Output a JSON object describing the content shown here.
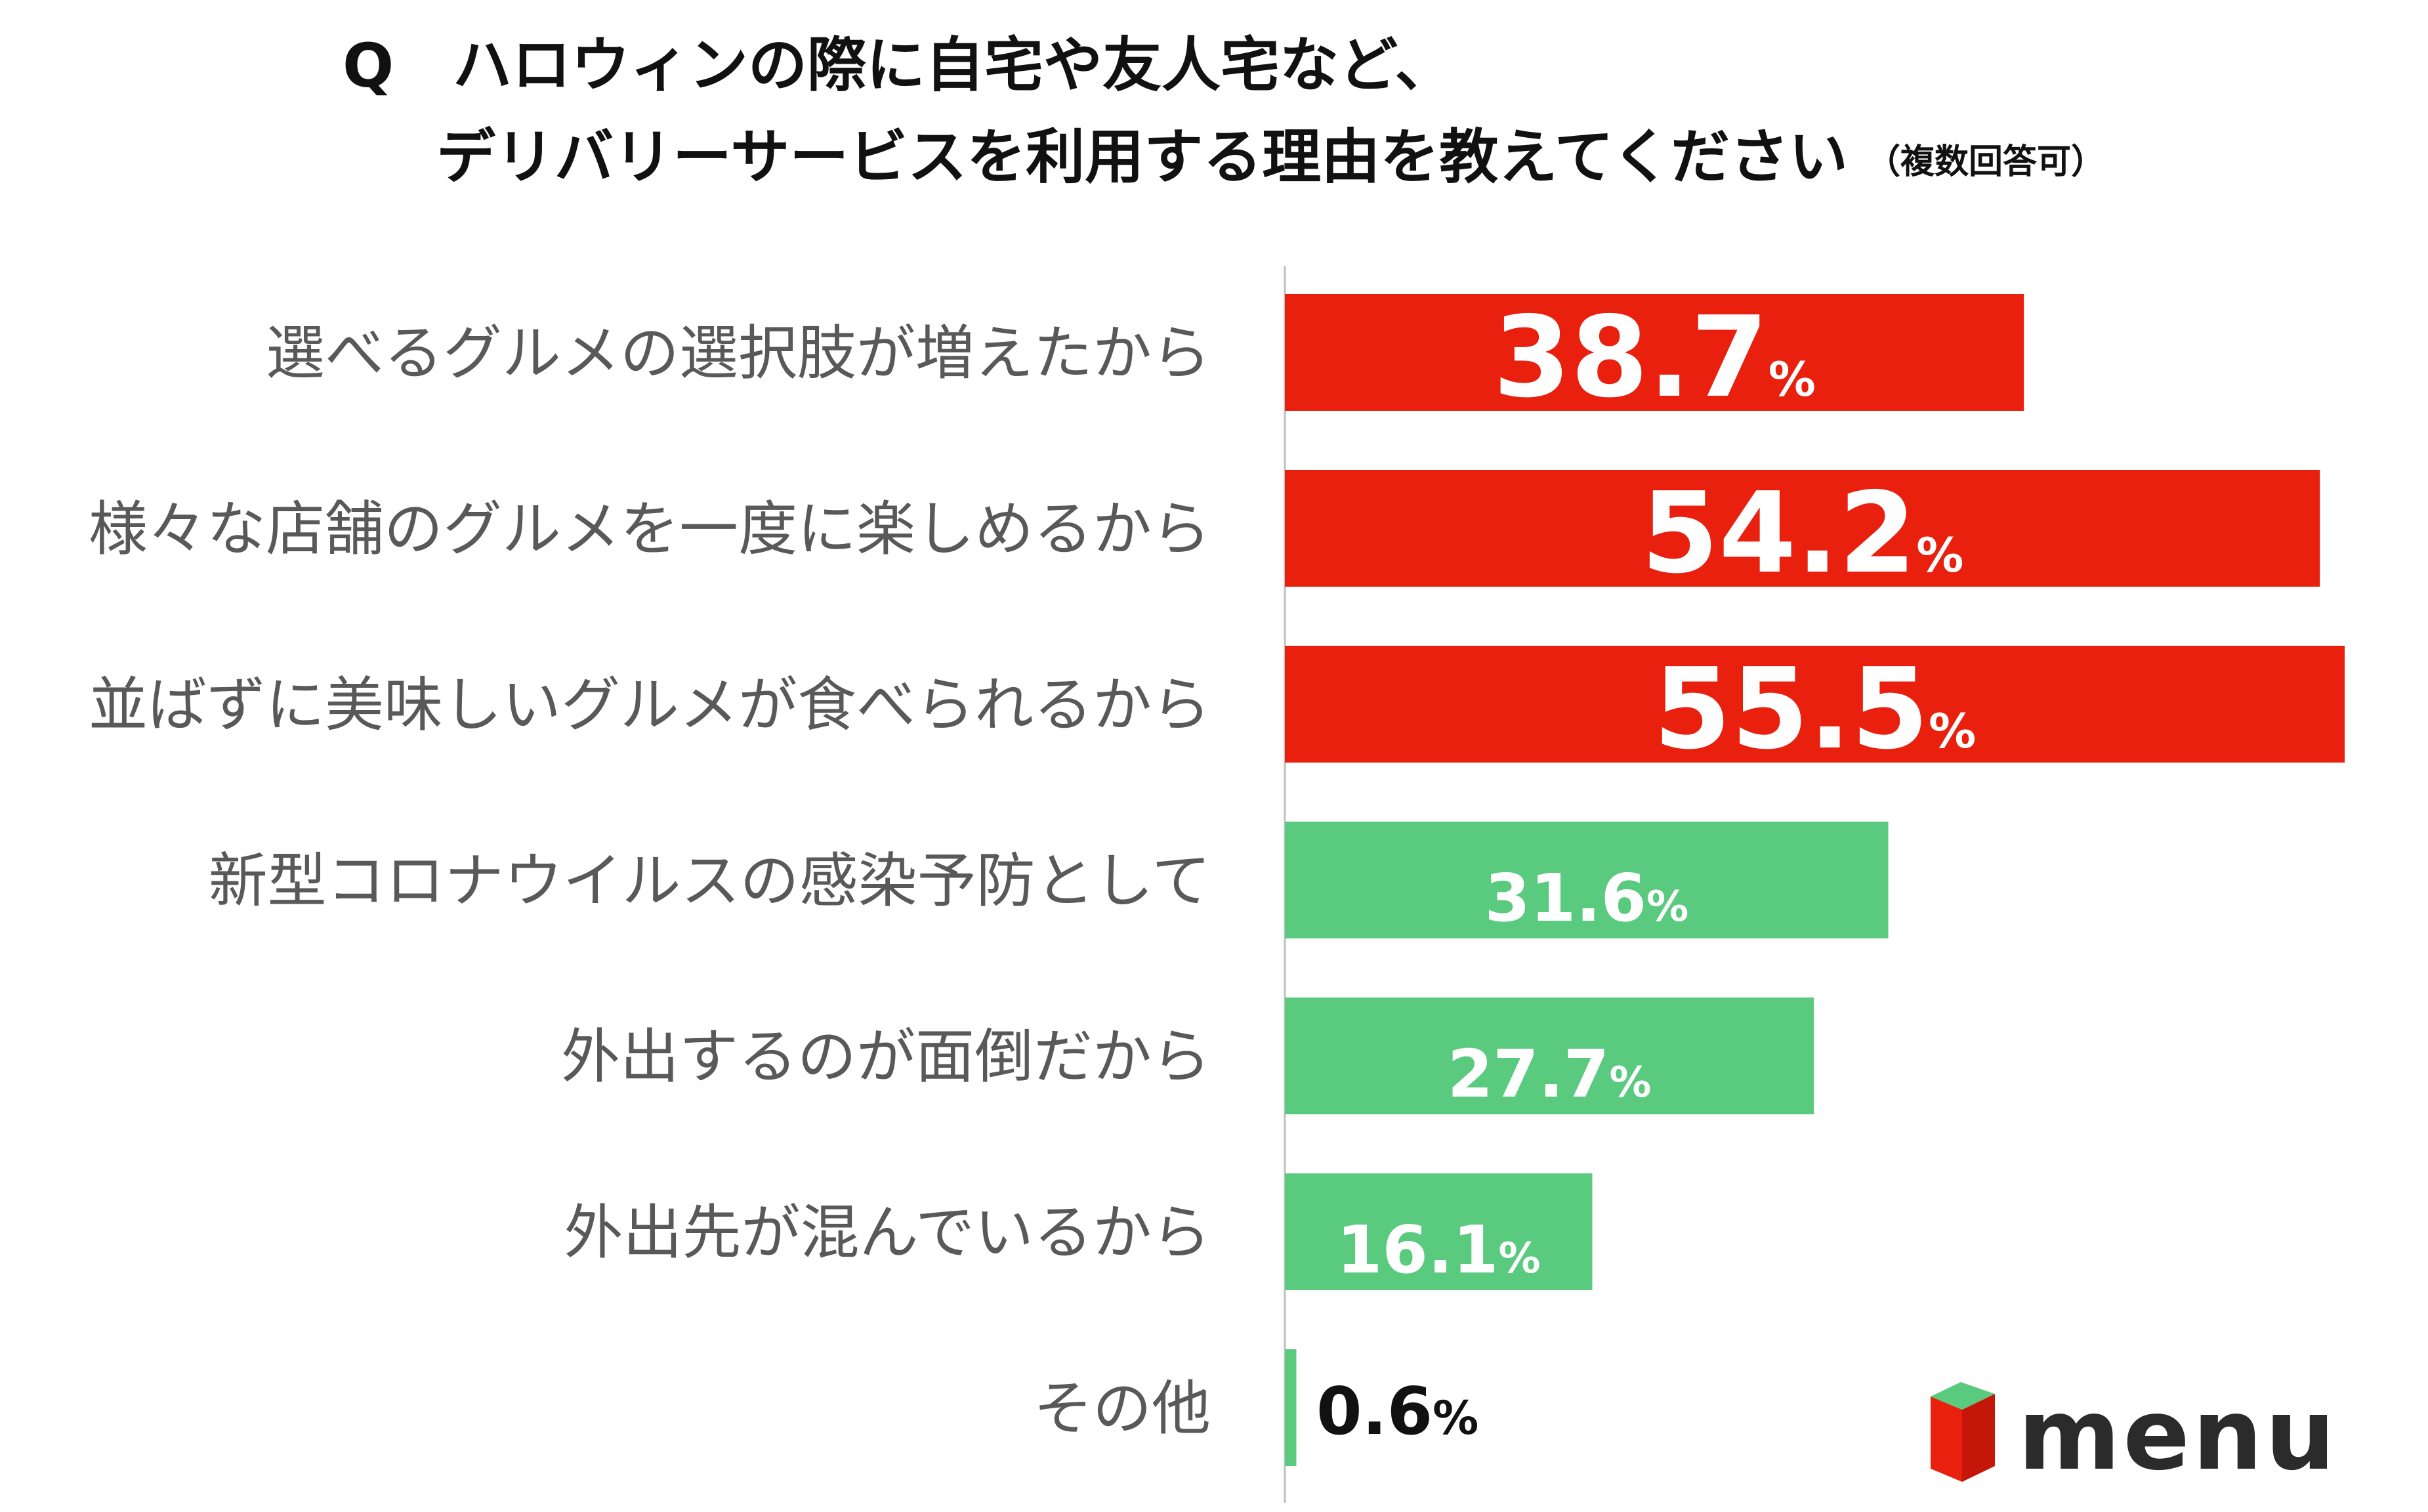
{
  "title": {
    "q_mark": "Q",
    "line1": "ハロウィンの際に自宅や友人宅など、",
    "line2": "デリバリーサービスを利用する理由を教えてください",
    "note": "（複数回答可）"
  },
  "colors": {
    "red": "#e8200d",
    "green": "#5acb7e",
    "label": "#595959",
    "axis": "#bfbfbf",
    "value_on_bar": "#ffffff",
    "value_outside": "#111111"
  },
  "chart_data": {
    "type": "bar",
    "orientation": "horizontal",
    "unit": "%",
    "xlim": [
      0,
      55.5
    ],
    "categories": [
      "選べるグルメの選択肢が増えたから",
      "様々な店舗のグルメを一度に楽しめるから",
      "並ばずに美味しいグルメが食べられるから",
      "新型コロナウイルスの感染予防として",
      "外出するのが面倒だから",
      "外出先が混んでいるから",
      "その他"
    ],
    "values": [
      38.7,
      54.2,
      55.5,
      31.6,
      27.7,
      16.1,
      0.6
    ],
    "value_labels": [
      "38.7",
      "54.2",
      "55.5",
      "31.6",
      "27.7",
      "16.1",
      "0.6"
    ],
    "highlight": [
      true,
      true,
      true,
      false,
      false,
      false,
      false
    ]
  },
  "logo": {
    "text": "menu"
  }
}
